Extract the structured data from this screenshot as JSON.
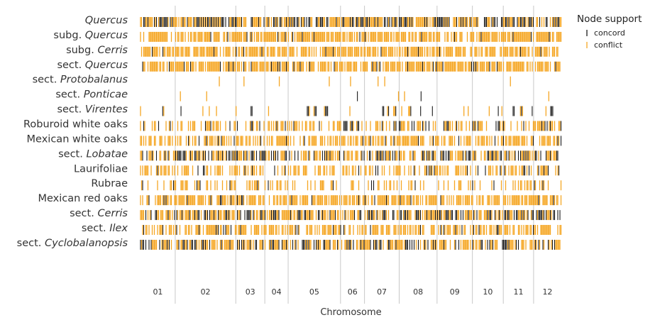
{
  "chart_data": {
    "type": "strip",
    "xlabel": "Chromosome",
    "categories": [
      "01",
      "02",
      "03",
      "04",
      "05",
      "06",
      "07",
      "08",
      "09",
      "10",
      "11",
      "12"
    ],
    "chromosome_lengths": [
      55,
      96,
      46,
      37,
      83,
      38,
      55,
      60,
      56,
      49,
      48,
      44
    ],
    "rows": [
      {
        "prefix": "",
        "name": "Quercus",
        "density": 0.85,
        "concord_frac": 0.45
      },
      {
        "prefix": "subg. ",
        "name": "Quercus",
        "density": 0.72,
        "concord_frac": 0.06
      },
      {
        "prefix": "subg. ",
        "name": "Cerris",
        "density": 0.72,
        "concord_frac": 0.06
      },
      {
        "prefix": "sect. ",
        "name": "Quercus",
        "density": 0.72,
        "concord_frac": 0.12
      },
      {
        "prefix": "sect. ",
        "name": "Protobalanus",
        "density": 0.1,
        "concord_frac": 0.05
      },
      {
        "prefix": "sect. ",
        "name": "Ponticae",
        "density": 0.07,
        "concord_frac": 0.3
      },
      {
        "prefix": "sect. ",
        "name": "Virentes",
        "density": 0.26,
        "concord_frac": 0.55
      },
      {
        "prefix": "",
        "name": "Roburoid white oaks",
        "density": 0.48,
        "concord_frac": 0.25
      },
      {
        "prefix": "",
        "name": "Mexican white oaks",
        "density": 0.6,
        "concord_frac": 0.08
      },
      {
        "prefix": "sect. ",
        "name": "Lobatae",
        "density": 0.66,
        "concord_frac": 0.45
      },
      {
        "prefix": "",
        "name": "Laurifoliae",
        "density": 0.45,
        "concord_frac": 0.12
      },
      {
        "prefix": "",
        "name": "Rubrae",
        "density": 0.32,
        "concord_frac": 0.1
      },
      {
        "prefix": "",
        "name": "Mexican red oaks",
        "density": 0.7,
        "concord_frac": 0.08
      },
      {
        "prefix": "sect. ",
        "name": "Cerris",
        "density": 0.72,
        "concord_frac": 0.4
      },
      {
        "prefix": "sect. ",
        "name": "Ilex",
        "density": 0.58,
        "concord_frac": 0.12
      },
      {
        "prefix": "sect. ",
        "name": "Cyclobalanopsis",
        "density": 0.66,
        "concord_frac": 0.35
      }
    ],
    "legend": {
      "title": "Node support",
      "position": "top-right",
      "items": [
        {
          "label": "concord",
          "color": "#1a1a1a"
        },
        {
          "label": "conflict",
          "color": "#f5a623"
        }
      ]
    },
    "colors": {
      "concord": "#1a1a1a",
      "conflict": "#f5a623",
      "separator": "#c8c8c8"
    }
  }
}
